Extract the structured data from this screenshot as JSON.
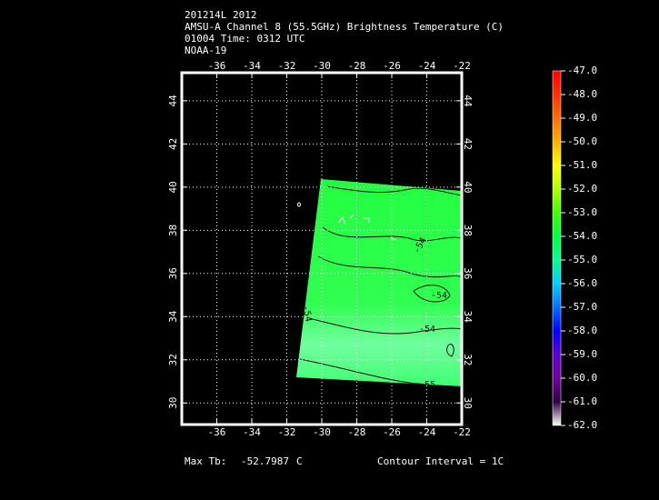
{
  "title_lines": [
    "201214L 2012",
    "AMSU-A Channel 8 (55.5GHz) Brightness Temperature (C)",
    "01004 Time: 0312 UTC",
    "NOAA-19"
  ],
  "map": {
    "xlim": [
      -38,
      -22
    ],
    "ylim": [
      29,
      45.3
    ],
    "xticks": [
      -36,
      -34,
      -32,
      -30,
      -28,
      -26,
      -24,
      -22
    ],
    "yticks": [
      30,
      32,
      34,
      36,
      38,
      40,
      42,
      44
    ],
    "grid": true,
    "contour_labels": [
      "-54",
      "-54",
      "-54",
      "-54",
      "-55"
    ]
  },
  "colorbar": {
    "range": [
      -62,
      -47
    ],
    "ticks": [
      {
        "value": -47,
        "label": "-47.0"
      },
      {
        "value": -48,
        "label": "-48.0"
      },
      {
        "value": -49,
        "label": "-49.0"
      },
      {
        "value": -50,
        "label": "-50.0"
      },
      {
        "value": -51,
        "label": "-51.0"
      },
      {
        "value": -52,
        "label": "-52.0"
      },
      {
        "value": -53,
        "label": "-53.0"
      },
      {
        "value": -54,
        "label": "-54.0"
      },
      {
        "value": -55,
        "label": "-55.0"
      },
      {
        "value": -56,
        "label": "-56.0"
      },
      {
        "value": -57,
        "label": "-57.0"
      },
      {
        "value": -58,
        "label": "-58.0"
      },
      {
        "value": -59,
        "label": "-59.0"
      },
      {
        "value": -60,
        "label": "-60.0"
      },
      {
        "value": -61,
        "label": "-61.0"
      },
      {
        "value": -62,
        "label": "-62.0"
      }
    ],
    "colors": [
      "#ff0000",
      "#ff3000",
      "#ff7000",
      "#ffb000",
      "#ffff00",
      "#b0ff00",
      "#40ff00",
      "#00ff40",
      "#00ff90",
      "#00d0ff",
      "#0070ff",
      "#0000ff",
      "#6000d0",
      "#7000a0",
      "#300040",
      "#ffffff"
    ]
  },
  "footer": {
    "max_label": "Max Tb:",
    "max_value": -52.7987,
    "max_unit": "C",
    "contour_interval": "Contour Interval = 1C"
  }
}
